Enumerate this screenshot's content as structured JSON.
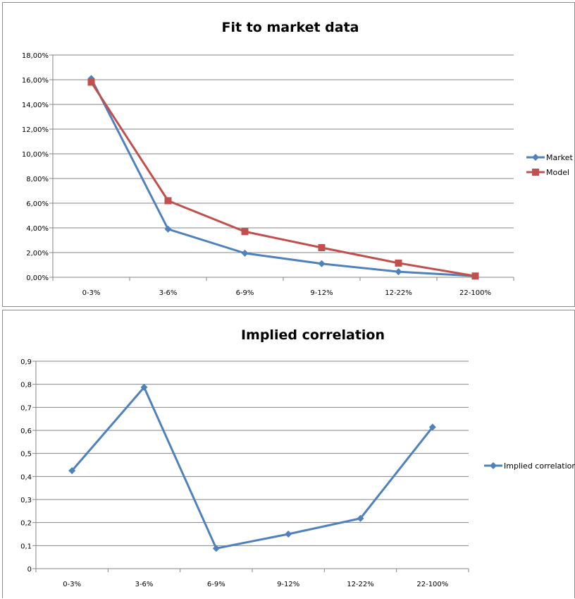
{
  "chart_data": [
    {
      "type": "line",
      "title": "Fit to market data",
      "categories": [
        "0-3%",
        "3-6%",
        "6-9%",
        "9-12%",
        "12-22%",
        "22-100%"
      ],
      "ylim": [
        0,
        0.18
      ],
      "y_tick_labels": [
        "0,00%",
        "2,00%",
        "4,00%",
        "6,00%",
        "8,00%",
        "10,00%",
        "12,00%",
        "14,00%",
        "16,00%",
        "18,00%"
      ],
      "grid": true,
      "legend_position": "right",
      "series": [
        {
          "name": "Market",
          "values": [
            0.161,
            0.039,
            0.0195,
            0.011,
            0.0045,
            0.001
          ],
          "color": "#4f81bd",
          "marker": "diamond"
        },
        {
          "name": "Model",
          "values": [
            0.158,
            0.062,
            0.037,
            0.024,
            0.0115,
            0.001
          ],
          "color": "#c0504d",
          "marker": "square"
        }
      ]
    },
    {
      "type": "line",
      "title": "Implied correlation",
      "categories": [
        "0-3%",
        "3-6%",
        "6-9%",
        "9-12%",
        "12-22%",
        "22-100%"
      ],
      "ylim": [
        0,
        0.9
      ],
      "y_tick_labels": [
        "0",
        "0,1",
        "0,2",
        "0,3",
        "0,4",
        "0,5",
        "0,6",
        "0,7",
        "0,8",
        "0,9"
      ],
      "grid": true,
      "legend_position": "right",
      "series": [
        {
          "name": "Implied correlation",
          "values": [
            0.425,
            0.787,
            0.088,
            0.15,
            0.218,
            0.614
          ],
          "color": "#4f81bd",
          "marker": "diamond"
        }
      ]
    }
  ]
}
